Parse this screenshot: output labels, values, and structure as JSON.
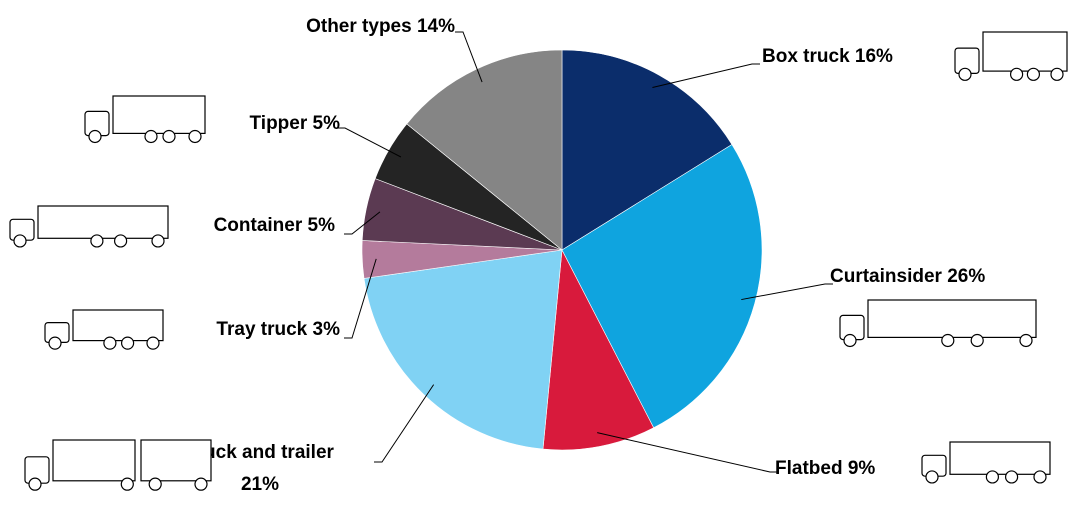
{
  "chart_data": {
    "type": "pie",
    "categories": [
      "Box truck",
      "Curtainsider",
      "Flatbed",
      "Truck and trailer",
      "Tray truck",
      "Container",
      "Tipper",
      "Other types"
    ],
    "values": [
      16,
      26,
      9,
      21,
      3,
      5,
      5,
      14
    ],
    "value_labels": [
      "16%",
      "26%",
      "9%",
      "21%",
      "3%",
      "5%",
      "5%",
      "14%"
    ],
    "colors": [
      "#0b2d6b",
      "#0fa4df",
      "#d81a3c",
      "#80d2f4",
      "#b47b9c",
      "#5b3a52",
      "#242424",
      "#858585"
    ]
  }
}
